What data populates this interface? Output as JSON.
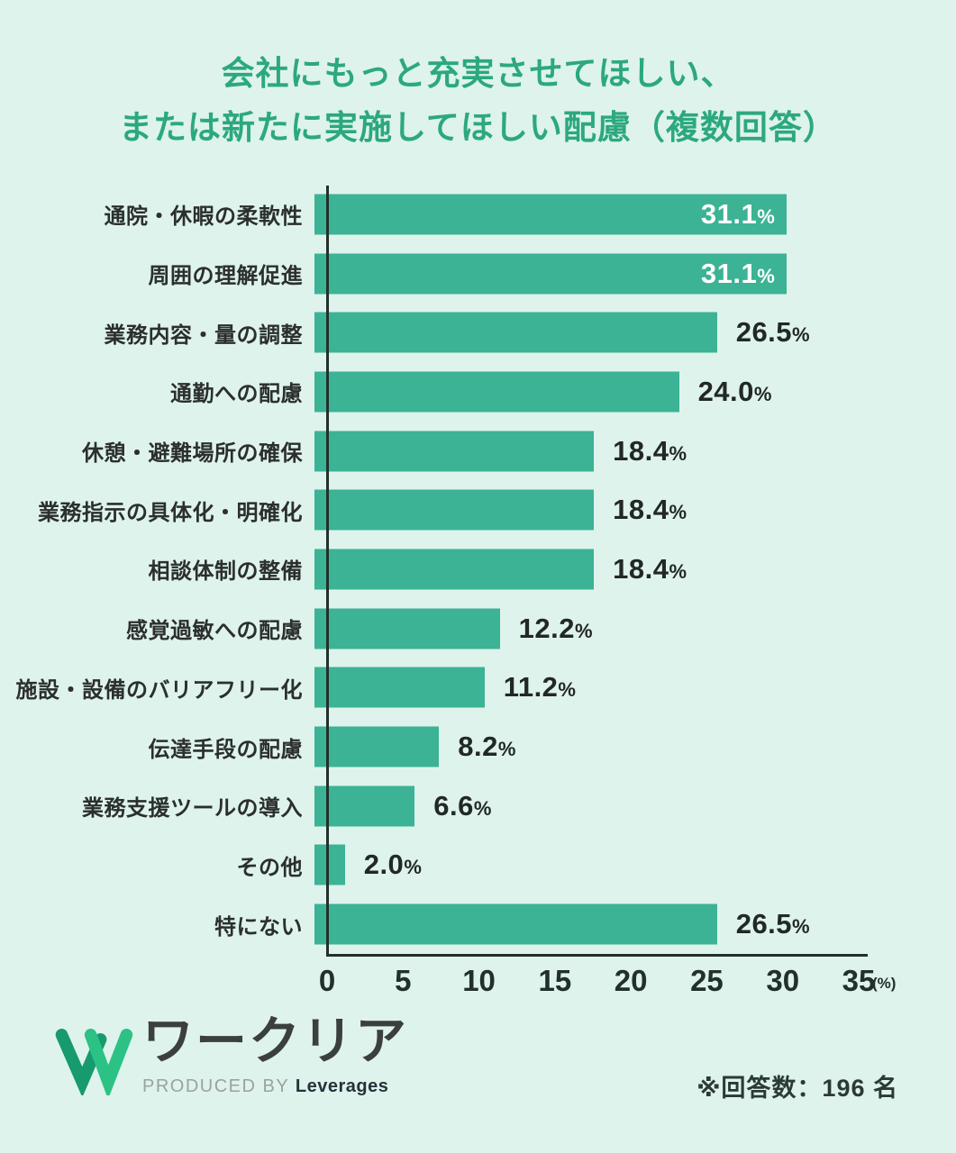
{
  "title": {
    "line1": "会社にもっと充実させてほしい、",
    "line2": "または新たに実施してほしい配慮（複数回答）"
  },
  "chart_data": {
    "type": "bar",
    "orientation": "horizontal",
    "title": "会社にもっと充実させてほしい、または新たに実施してほしい配慮（複数回答）",
    "categories": [
      "通院・休暇の柔軟性",
      "周囲の理解促進",
      "業務内容・量の調整",
      "通勤への配慮",
      "休憩・避難場所の確保",
      "業務指示の具体化・明確化",
      "相談体制の整備",
      "感覚過敏への配慮",
      "施設・設備のバリアフリー化",
      "伝達手段の配慮",
      "業務支援ツールの導入",
      "その他",
      "特にない"
    ],
    "values": [
      31.1,
      31.1,
      26.5,
      24.0,
      18.4,
      18.4,
      18.4,
      12.2,
      11.2,
      8.2,
      6.6,
      2.0,
      26.5
    ],
    "value_label_positions": [
      "inside",
      "inside",
      "outside",
      "outside",
      "outside",
      "outside",
      "outside",
      "outside",
      "outside",
      "outside",
      "outside",
      "outside",
      "outside"
    ],
    "unit_suffix": "%",
    "xlim": [
      0,
      35
    ],
    "x_ticks": [
      "0",
      "5",
      "10",
      "15",
      "20",
      "25",
      "30",
      "35"
    ],
    "x_unit": "(%)",
    "grid": false,
    "legend": false,
    "bar_color": "#3bb394",
    "background_color": "#def3ec",
    "title_color": "#2ca87f"
  },
  "footer": {
    "logo_name": "workria-logo",
    "wordmark": "ワークリア",
    "produced_by": "PRODUCED BY ",
    "company": "Leverages",
    "note": "※回答数：196 名"
  }
}
